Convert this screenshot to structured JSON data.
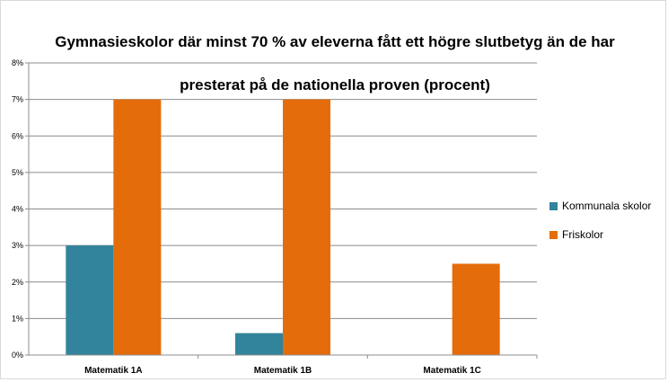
{
  "colors": {
    "kommunala": "#31849b",
    "friskolor": "#e46c0a",
    "grid": "#8c8c8c"
  },
  "chart_data": {
    "type": "bar",
    "title_lines": [
      "Gymnasieskolor där minst 70 % av eleverna fått ett högre slutbetyg än de har",
      "presterat på de nationella proven (procent)"
    ],
    "categories": [
      "Matematik 1A",
      "Matematik 1B",
      "Matematik 1C"
    ],
    "series": [
      {
        "name": "Kommunala skolor",
        "values": [
          3,
          0.6,
          0
        ]
      },
      {
        "name": "Friskolor",
        "values": [
          7,
          7,
          2.5
        ]
      }
    ],
    "ylim": [
      0,
      8
    ],
    "yticks": [
      "0%",
      "1%",
      "2%",
      "3%",
      "4%",
      "5%",
      "6%",
      "7%",
      "8%"
    ],
    "grid": true,
    "legend_position": "right"
  }
}
